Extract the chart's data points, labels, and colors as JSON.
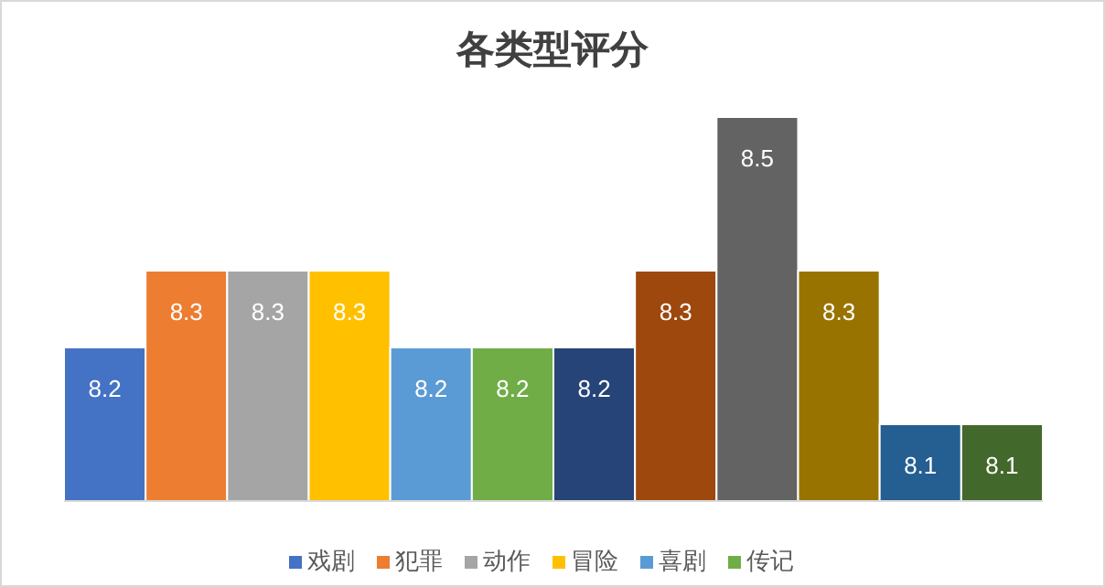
{
  "chart_data": {
    "type": "bar",
    "title": "各类型评分",
    "categories": [
      null
    ],
    "ylim": [
      8,
      8.5
    ],
    "data_labels": true,
    "legend": "bottom",
    "series": [
      {
        "name": "戏剧",
        "color": "#4472c4",
        "values": [
          8.2
        ]
      },
      {
        "name": "犯罪",
        "color": "#ed7d31",
        "values": [
          8.3
        ]
      },
      {
        "name": "动作",
        "color": "#a5a5a5",
        "values": [
          8.3
        ]
      },
      {
        "name": "冒险",
        "color": "#ffc000",
        "values": [
          8.3
        ]
      },
      {
        "name": "喜剧",
        "color": "#5b9bd5",
        "values": [
          8.2
        ]
      },
      {
        "name": "传记",
        "color": "#70ad47",
        "values": [
          8.2
        ]
      },
      {
        "color": "#264478",
        "values": [
          8.2
        ]
      },
      {
        "color": "#9e480e",
        "values": [
          8.3
        ]
      },
      {
        "color": "#636363",
        "values": [
          8.5
        ]
      },
      {
        "color": "#997300",
        "values": [
          8.3
        ]
      },
      {
        "color": "#255e91",
        "values": [
          8.1
        ]
      },
      {
        "color": "#43682b",
        "values": [
          8.1
        ]
      }
    ]
  }
}
